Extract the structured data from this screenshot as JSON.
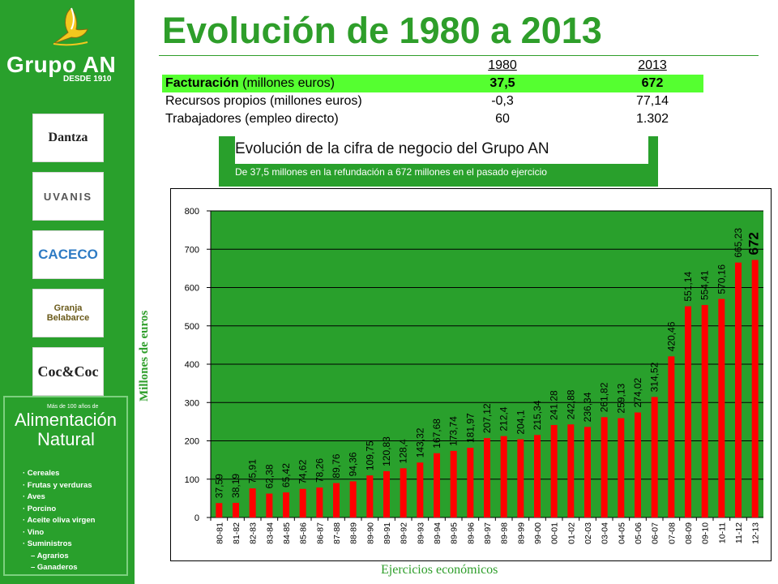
{
  "sidebar": {
    "brand_name": "Grupo AN",
    "brand_since": "DESDE 1910",
    "logos": [
      "Dantza",
      "UVANIS",
      "CACECO",
      "Granja Belabarce",
      "Coc&Coc"
    ],
    "alimentacion": {
      "small": "Más de 100 años de",
      "line1": "Alimentación",
      "line2": "Natural",
      "items": [
        "· Cereales",
        "· Frutas y verduras",
        "· Aves",
        "· Porcino",
        "· Aceite oliva virgen",
        "· Vino",
        "· Suministros",
        "– Agrarios",
        "– Ganaderos"
      ]
    }
  },
  "title": "Evolución de 1980 a 2013",
  "summary": {
    "headers": [
      "",
      "1980",
      "2013"
    ],
    "rows": [
      {
        "label_bold": "Facturación",
        "label_rest": " (millones euros)",
        "v1980": "37,5",
        "v2013": "672"
      },
      {
        "label_bold": "",
        "label_rest": "Recursos propios (millones euros)",
        "v1980": "-0,3",
        "v2013": "77,14"
      },
      {
        "label_bold": "",
        "label_rest": "Trabajadores (empleo directo)",
        "v1980": "60",
        "v2013": "1.302"
      }
    ]
  },
  "callout": {
    "title": "Evolución de la cifra de negocio del Grupo AN",
    "subtitle": "De 37,5 millones en la refundación a 672 millones en el pasado ejercicio"
  },
  "colors": {
    "green": "#29a02c",
    "bar": "#ff0000",
    "highlight": "#55ff30"
  },
  "chart_data": {
    "type": "bar",
    "title": "",
    "xlabel": "Ejercicios económicos",
    "ylabel": "Millones de euros",
    "ylim": [
      0,
      800
    ],
    "yticks": [
      0,
      100,
      200,
      300,
      400,
      500,
      600,
      700,
      800
    ],
    "grid": true,
    "categories": [
      "80-81",
      "81-82",
      "82-83",
      "83-84",
      "84-85",
      "85-86",
      "86-87",
      "87-88",
      "88-89",
      "89-90",
      "89-91",
      "89-92",
      "89-93",
      "89-94",
      "89-95",
      "89-96",
      "89-97",
      "89-98",
      "89-99",
      "99-00",
      "00-01",
      "01-02",
      "02-03",
      "03-04",
      "04-05",
      "05-06",
      "06-07",
      "07-08",
      "08-09",
      "09-10",
      "10-11",
      "11-12",
      "12-13"
    ],
    "values": [
      37.59,
      38.19,
      75.91,
      62.38,
      65.42,
      74.62,
      78.26,
      89.76,
      94.36,
      109.75,
      120.83,
      128.4,
      143.32,
      167.68,
      173.74,
      181.97,
      207.12,
      212.4,
      204.1,
      215.34,
      241.28,
      242.88,
      236.34,
      261.82,
      259.13,
      274.02,
      314.52,
      420.46,
      551.14,
      554.41,
      570.16,
      665.23,
      672
    ],
    "labels": [
      "37,59",
      "38,19",
      "75,91",
      "62,38",
      "65,42",
      "74,62",
      "78,26",
      "89,76",
      "94,36",
      "109,75",
      "120,83",
      "128,4",
      "143,32",
      "167,68",
      "173,74",
      "181,97",
      "207,12",
      "212,4",
      "204,1",
      "215,34",
      "241,28",
      "242,88",
      "236,34",
      "261,82",
      "259,13",
      "274,02",
      "314,52",
      "420,46",
      "551,14",
      "554,41",
      "570,16",
      "665,23",
      "672"
    ]
  }
}
